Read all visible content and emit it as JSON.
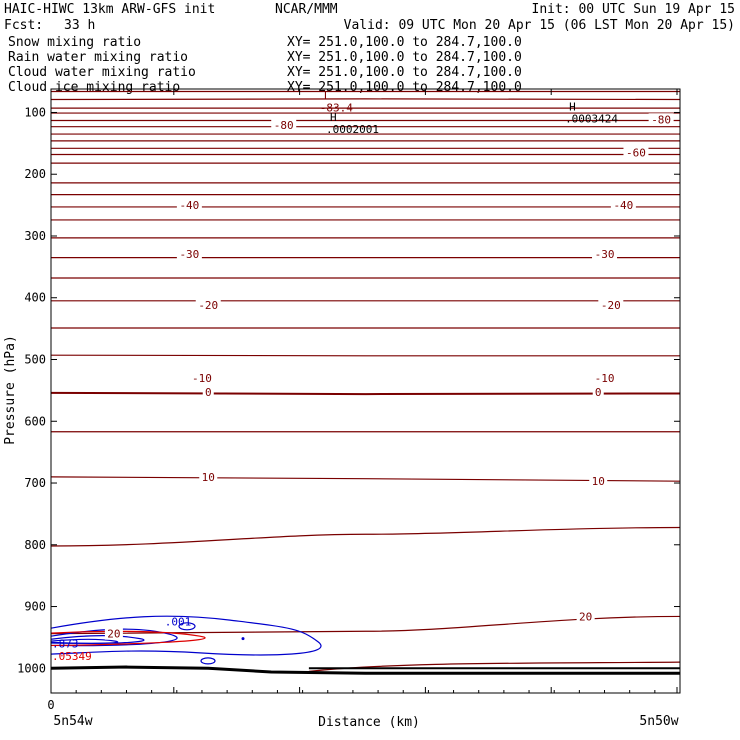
{
  "header": {
    "model": "HAIC-HIWC 13km ARW-GFS init",
    "center": "NCAR/MMM",
    "init": "Init: 00 UTC Sun 19 Apr 15",
    "fcst_label": "Fcst:",
    "fcst_value": "33 h",
    "valid": "Valid: 09 UTC Mon 20 Apr 15 (06 LST Mon 20 Apr 15)"
  },
  "fields": [
    {
      "name": "Snow mixing ratio",
      "xy": "XY= 251.0,100.0 to 284.7,100.0",
      "color": "#000000"
    },
    {
      "name": "Rain water mixing ratio",
      "xy": "XY= 251.0,100.0 to 284.7,100.0",
      "color": "#dd0000"
    },
    {
      "name": "Cloud water mixing ratio",
      "xy": "XY= 251.0,100.0 to 284.7,100.0",
      "color": "#0000cc"
    },
    {
      "name": "Cloud ice mixing ratio",
      "xy": "XY= 251.0,100.0 to 284.7,100.0",
      "color": "#000000"
    }
  ],
  "chart_data": {
    "type": "line",
    "xlabel": "Distance (km)",
    "ylabel": "Pressure (hPa)",
    "x_tick_label": "0",
    "x_left_label": "5n54w",
    "x_right_label": "5n50w",
    "y_ticks": [
      100,
      200,
      300,
      400,
      500,
      600,
      700,
      800,
      900,
      1000
    ],
    "ylim": [
      1040,
      62
    ],
    "colors": {
      "temperature": "#7a0000",
      "cloud_water": "#0000cc",
      "rain": "#dd0000",
      "terrain": "#000000"
    },
    "isotherm_labels": [
      {
        "text": "-80",
        "x": 0.37,
        "p": 120
      },
      {
        "text": "-80",
        "x": 0.97,
        "p": 111
      },
      {
        "text": "-60",
        "x": 0.93,
        "p": 165
      },
      {
        "text": "-40",
        "x": 0.22,
        "p": 250
      },
      {
        "text": "-40",
        "x": 0.91,
        "p": 250
      },
      {
        "text": "-30",
        "x": 0.22,
        "p": 329
      },
      {
        "text": "-30",
        "x": 0.88,
        "p": 329
      },
      {
        "text": "-20",
        "x": 0.25,
        "p": 412
      },
      {
        "text": "-20",
        "x": 0.89,
        "p": 412
      },
      {
        "text": "-10",
        "x": 0.24,
        "p": 530
      },
      {
        "text": "-10",
        "x": 0.88,
        "p": 530
      },
      {
        "text": "0",
        "x": 0.25,
        "p": 553
      },
      {
        "text": "0",
        "x": 0.87,
        "p": 553
      },
      {
        "text": "10",
        "x": 0.25,
        "p": 690
      },
      {
        "text": "10",
        "x": 0.87,
        "p": 697
      },
      {
        "text": "20",
        "x": 0.1,
        "p": 944
      },
      {
        "text": "20",
        "x": 0.85,
        "p": 916
      }
    ],
    "extrema": [
      {
        "marker": "L",
        "value": "-83.4",
        "x": 0.44,
        "p": 79,
        "color": "#7a0000"
      },
      {
        "marker": "H",
        "value": ".0002001",
        "x": 0.45,
        "p": 114,
        "color": "#000000"
      },
      {
        "marker": "H",
        "value": ".0003424",
        "x": 0.83,
        "p": 97,
        "color": "#000000"
      }
    ],
    "cloud_water_labels": [
      {
        "text": ".001",
        "x": 0.2,
        "p": 924
      },
      {
        "text": ".873",
        "x": 0.0,
        "p": 960
      }
    ],
    "rain_labels": [
      {
        "text": ".05349",
        "x": 0.0,
        "p": 980
      }
    ]
  }
}
